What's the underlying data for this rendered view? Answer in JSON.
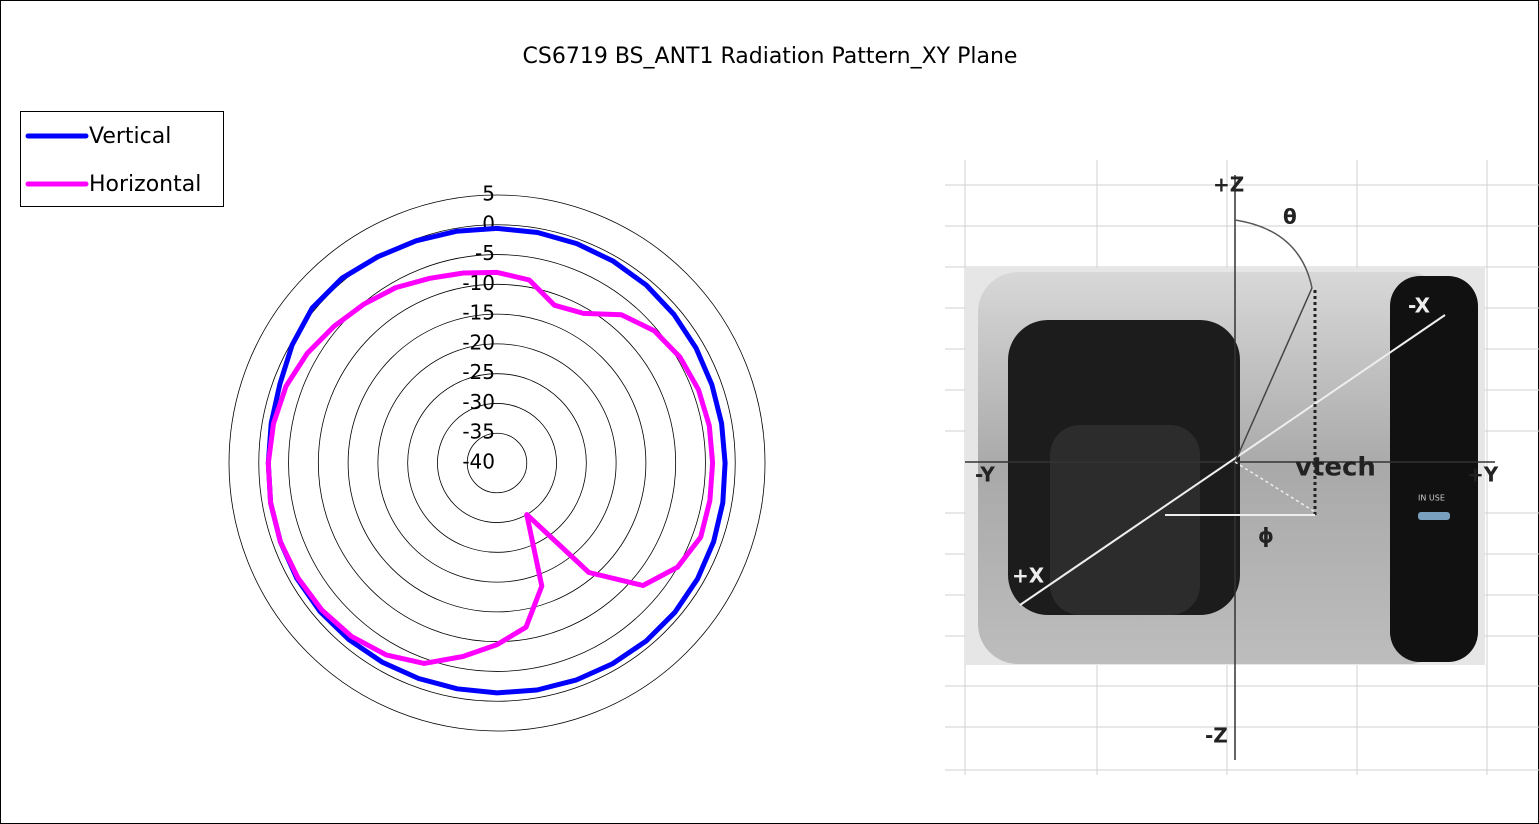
{
  "chart_data": {
    "type": "radar",
    "title": "CS6719 BS_ANT1 Radiation Pattern_XY Plane",
    "categories": [
      null,
      null,
      null,
      null,
      null,
      null,
      null,
      null,
      null,
      null,
      null,
      null,
      null,
      null,
      null,
      null,
      null,
      null,
      null,
      null,
      null,
      null,
      null,
      null,
      null,
      null,
      null,
      null,
      null,
      null,
      null,
      null,
      null,
      null,
      null,
      null
    ],
    "series": [
      {
        "name": "Vertical",
        "color": "#0000ff",
        "values": [
          -0.6,
          -0.7,
          -0.8,
          -0.9,
          -1,
          -1.2,
          -1.4,
          -1.6,
          -1.7,
          -1.7,
          -1.5,
          -1.3,
          -1.1,
          -1,
          -1,
          -1.1,
          -1.2,
          -1.3,
          -1.4,
          -1.5,
          -1.5,
          -1.4,
          -1.3,
          -1.2,
          -1.2,
          -1.3,
          -1.4,
          -1.6,
          -1.5,
          -1.2,
          -0.3,
          0.5,
          0.5,
          0,
          -0.3,
          -0.5
        ]
      },
      {
        "name": "Horizontal",
        "color": "#ff00ff",
        "values": [
          -8,
          -8.8,
          -11.8,
          -11,
          -7.5,
          -5.5,
          -4.5,
          -4,
          -3.8,
          -3.8,
          -3.7,
          -3.6,
          -5,
          -8,
          -16,
          -30,
          -18,
          -12,
          -9.5,
          -7,
          -4.2,
          -2.8,
          -2,
          -1.6,
          -1.4,
          -1.3,
          -1.4,
          -1.6,
          -1.9,
          -2.3,
          -3.2,
          -4.3,
          -5.2,
          -6,
          -7,
          -7.6
        ]
      }
    ],
    "ylim": [
      -40,
      5
    ],
    "yticks": [
      -40,
      -35,
      -30,
      -25,
      -20,
      -15,
      -10,
      -5,
      0,
      5
    ],
    "grid": true,
    "legend": "top-left"
  },
  "photo": {
    "labels": [
      "+Z",
      "θ",
      "-X",
      "-Y",
      "+Y",
      "vtech",
      "IN USE",
      "ϕ",
      "+X",
      "-Z"
    ]
  }
}
